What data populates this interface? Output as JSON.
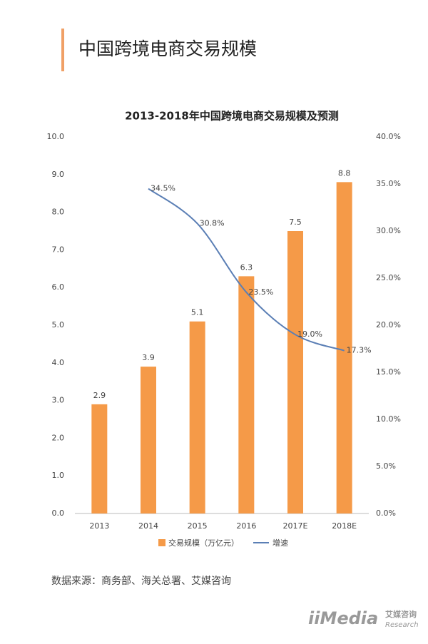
{
  "header": {
    "title": "中国跨境电商交易规模"
  },
  "chart_data": {
    "type": "bar-line",
    "title": "2013-2018年中国跨境电商交易规模及预测",
    "categories": [
      "2013",
      "2014",
      "2015",
      "2016",
      "2017E",
      "2018E"
    ],
    "series": [
      {
        "name": "交易规模（万亿元）",
        "type": "bar",
        "color": "#f59a48",
        "values": [
          2.9,
          3.9,
          5.1,
          6.3,
          7.5,
          8.8
        ]
      },
      {
        "name": "增速",
        "type": "line",
        "axis": "y2",
        "color": "#5b7fb5",
        "values": [
          null,
          34.5,
          30.8,
          23.5,
          19.0,
          17.3
        ],
        "value_labels": [
          null,
          "34.5%",
          "30.8%",
          "23.5%",
          "19.0%",
          "17.3%"
        ]
      }
    ],
    "ylim": [
      0,
      10
    ],
    "yticks": [
      {
        "value": 0,
        "label": "0.0"
      },
      {
        "value": 1,
        "label": "1.0"
      },
      {
        "value": 2,
        "label": "2.0"
      },
      {
        "value": 3,
        "label": "3.0"
      },
      {
        "value": 4,
        "label": "4.0"
      },
      {
        "value": 5,
        "label": "5.0"
      },
      {
        "value": 6,
        "label": "6.0"
      },
      {
        "value": 7,
        "label": "7.0"
      },
      {
        "value": 8,
        "label": "8.0"
      },
      {
        "value": 9,
        "label": "9.0"
      },
      {
        "value": 10,
        "label": "10.0"
      }
    ],
    "y2lim": [
      0,
      40
    ],
    "y2ticks": [
      {
        "value": 0,
        "label": "0.0%"
      },
      {
        "value": 5,
        "label": "5.0%"
      },
      {
        "value": 10,
        "label": "10.0%"
      },
      {
        "value": 15,
        "label": "15.0%"
      },
      {
        "value": 20,
        "label": "20.0%"
      },
      {
        "value": 25,
        "label": "25.0%"
      },
      {
        "value": 30,
        "label": "30.0%"
      },
      {
        "value": 35,
        "label": "35.0%"
      },
      {
        "value": 40,
        "label": "40.0%"
      }
    ],
    "grid": false
  },
  "source": "数据来源：商务部、海关总署、艾媒咨询",
  "logo": {
    "brand": "iiMedia",
    "cn": "艾媒咨询",
    "en": "Research"
  }
}
